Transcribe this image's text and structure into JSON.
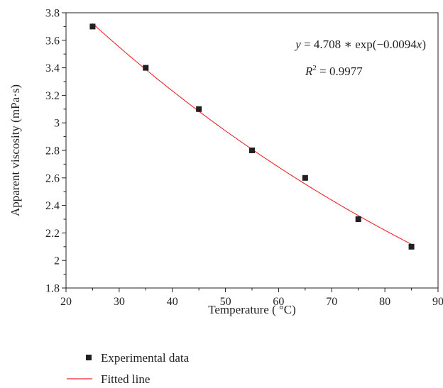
{
  "chart_data": {
    "type": "scatter",
    "title": "",
    "xlabel": "Temperature ( °C)",
    "ylabel": "Apparent viscosity (mPa·s)",
    "xlim": [
      20,
      90
    ],
    "ylim": [
      1.8,
      3.8
    ],
    "x_ticks": [
      "20",
      "30",
      "40",
      "50",
      "60",
      "70",
      "80",
      "90"
    ],
    "y_ticks": [
      "1.8",
      "2",
      "2.2",
      "2.4",
      "2.6",
      "2.8",
      "3",
      "3.2",
      "3.4",
      "3.6",
      "3.8"
    ],
    "grid": false,
    "legend_position": "bottom-left",
    "series": [
      {
        "name": "Experimental data",
        "type": "scatter",
        "marker": "square",
        "color": "#231f20",
        "x": [
          25,
          35,
          45,
          55,
          65,
          75,
          85
        ],
        "y": [
          3.7,
          3.4,
          3.1,
          2.8,
          2.6,
          2.3,
          2.1
        ]
      },
      {
        "name": "Fitted line",
        "type": "line",
        "color": "#e8262b",
        "model": {
          "a": 4.708,
          "b": -0.0094
        },
        "x_range": [
          25,
          85
        ]
      }
    ],
    "annotations": {
      "equation": {
        "y_var": "y",
        "eq_text": " = 4.708 ∗ exp(−0.0094",
        "x_var": "x",
        "close_paren": ")"
      },
      "r2": {
        "var": "R",
        "sup": "2",
        "text": " = 0.9977"
      }
    }
  }
}
